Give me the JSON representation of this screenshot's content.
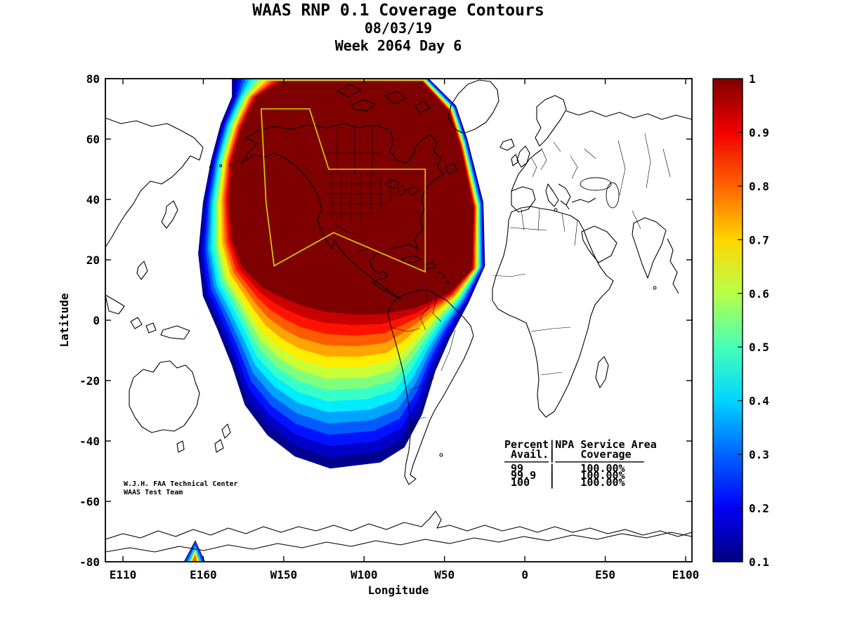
{
  "titles": {
    "line1": "WAAS RNP 0.1 Coverage Contours",
    "line2": "08/03/19",
    "line3": "Week 2064 Day 6"
  },
  "axes": {
    "x": {
      "label": "Longitude",
      "ticks": [
        {
          "label": "E110",
          "lon": 110
        },
        {
          "label": "E160",
          "lon": 160
        },
        {
          "label": "W150",
          "lon": 210
        },
        {
          "label": "W100",
          "lon": 260
        },
        {
          "label": "W50",
          "lon": 310
        },
        {
          "label": "0",
          "lon": 360
        },
        {
          "label": "E50",
          "lon": 410
        },
        {
          "label": "E100",
          "lon": 460
        }
      ]
    },
    "y": {
      "label": "Latitude",
      "ticks": [
        {
          "label": "80",
          "lat": 80
        },
        {
          "label": "60",
          "lat": 60
        },
        {
          "label": "40",
          "lat": 40
        },
        {
          "label": "20",
          "lat": 20
        },
        {
          "label": "0",
          "lat": 0
        },
        {
          "label": "-20",
          "lat": -20
        },
        {
          "label": "-40",
          "lat": -40
        },
        {
          "label": "-60",
          "lat": -60
        },
        {
          "label": "-80",
          "lat": -80
        }
      ]
    }
  },
  "colorbar": {
    "min": 0.1,
    "max": 1,
    "ticks": [
      {
        "label": "1",
        "value": 1.0
      },
      {
        "label": "0.9",
        "value": 0.9
      },
      {
        "label": "0.8",
        "value": 0.8
      },
      {
        "label": "0.7",
        "value": 0.7
      },
      {
        "label": "0.6",
        "value": 0.6
      },
      {
        "label": "0.5",
        "value": 0.5
      },
      {
        "label": "0.4",
        "value": 0.4
      },
      {
        "label": "0.3",
        "value": 0.3
      },
      {
        "label": "0.2",
        "value": 0.2
      },
      {
        "label": "0.1",
        "value": 0.1
      }
    ],
    "stops": [
      {
        "value": 1.0,
        "color": "#7F0000"
      },
      {
        "value": 0.9,
        "color": "#F10000"
      },
      {
        "value": 0.8,
        "color": "#FF6300"
      },
      {
        "value": 0.7,
        "color": "#FFD500"
      },
      {
        "value": 0.6,
        "color": "#B8FF47"
      },
      {
        "value": 0.5,
        "color": "#47FFB8"
      },
      {
        "value": 0.4,
        "color": "#00D4FF"
      },
      {
        "value": 0.3,
        "color": "#0063FF"
      },
      {
        "value": 0.2,
        "color": "#0000F5"
      },
      {
        "value": 0.1,
        "color": "#000080"
      }
    ]
  },
  "colors": {
    "service_area": "#D6D600",
    "coastline": "#000000",
    "background": "#FFFFFF"
  },
  "annotations": {
    "stats_rows": [
      "Percent|NPA Service Area",
      " Avail.|    Coverage",
      "_______|______________",
      " 99    |    100.00%",
      " 99.9  |    100.00%",
      " 100   |    100.00%"
    ],
    "credit_line1": "W.J.H. FAA Technical Center",
    "credit_line2": "WAAS Test Team"
  },
  "chart_data": {
    "type": "heatmap",
    "title": "WAAS RNP 0.1 Coverage Contours",
    "date": "08/03/19",
    "week": "Week 2064 Day 6",
    "xlabel": "Longitude",
    "ylabel": "Latitude",
    "x_axis_deg_east_of_greenwich": [
      110,
      460
    ],
    "y_range_lat": [
      -80,
      80
    ],
    "colormap": "jet",
    "colorbar_range": [
      0.1,
      1.0
    ],
    "contour_levels": [
      0.1,
      0.164,
      0.229,
      0.293,
      0.357,
      0.421,
      0.486,
      0.55,
      0.614,
      0.679,
      0.743,
      0.807,
      0.871,
      0.936,
      1.0
    ],
    "contour_colors": [
      "#00008F",
      "#0000C8",
      "#0012FF",
      "#005BFF",
      "#00A4FF",
      "#00EDFF",
      "#37FFC8",
      "#7FFF7F",
      "#C8FF37",
      "#FFED00",
      "#FFA400",
      "#FF5B00",
      "#FF1200",
      "#C80000",
      "#7F0000"
    ],
    "coverage_outer_boundary": [
      [
        178,
        80
      ],
      [
        300,
        80
      ],
      [
        317,
        71
      ],
      [
        324,
        60
      ],
      [
        334,
        39
      ],
      [
        335,
        18
      ],
      [
        325,
        6
      ],
      [
        313,
        -6
      ],
      [
        304,
        -17
      ],
      [
        296,
        -31
      ],
      [
        285,
        -42
      ],
      [
        270,
        -47
      ],
      [
        239,
        -49
      ],
      [
        217,
        -45
      ],
      [
        200,
        -38
      ],
      [
        186,
        -28
      ],
      [
        178,
        -15
      ],
      [
        169,
        -3
      ],
      [
        160,
        8
      ],
      [
        157,
        22
      ],
      [
        160,
        39
      ],
      [
        165,
        53
      ],
      [
        171,
        65
      ],
      [
        178,
        74
      ]
    ],
    "coverage_core_boundary": [
      [
        208,
        79
      ],
      [
        296,
        79
      ],
      [
        313,
        69
      ],
      [
        320,
        57
      ],
      [
        328,
        37
      ],
      [
        327,
        17
      ],
      [
        313,
        9
      ],
      [
        300,
        6
      ],
      [
        291,
        4
      ],
      [
        280,
        3
      ],
      [
        270,
        2
      ],
      [
        252,
        2
      ],
      [
        235,
        3
      ],
      [
        221,
        5
      ],
      [
        212,
        7
      ],
      [
        204,
        9
      ],
      [
        197,
        11
      ],
      [
        191,
        14
      ],
      [
        184,
        18
      ],
      [
        178,
        27
      ],
      [
        176,
        40
      ],
      [
        178,
        53
      ],
      [
        184,
        64
      ],
      [
        193,
        74
      ]
    ],
    "service_area_boundary": [
      [
        196,
        70
      ],
      [
        226,
        70
      ],
      [
        238,
        50
      ],
      [
        298,
        50
      ],
      [
        298,
        16
      ],
      [
        241,
        29
      ],
      [
        204,
        18
      ],
      [
        199,
        39
      ]
    ],
    "south_feature": [
      {
        "color": "#0040FF",
        "pts": [
          [
            148,
            -80
          ],
          [
            161,
            -80
          ],
          [
            155,
            -73
          ]
        ]
      },
      {
        "color": "#00D4FF",
        "pts": [
          [
            150,
            -80
          ],
          [
            159,
            -80
          ],
          [
            155,
            -74.5
          ]
        ]
      },
      {
        "color": "#FFED00",
        "pts": [
          [
            151.5,
            -80
          ],
          [
            157.5,
            -80
          ],
          [
            155,
            -76
          ]
        ]
      },
      {
        "color": "#FF6300",
        "pts": [
          [
            153,
            -80
          ],
          [
            156,
            -80
          ],
          [
            155,
            -77.5
          ]
        ]
      }
    ],
    "availability_table": {
      "columns": [
        "Percent Avail.",
        "NPA Service Area Coverage"
      ],
      "rows": [
        [
          "99",
          "100.00%"
        ],
        [
          "99.9",
          "100.00%"
        ],
        [
          "100",
          "100.00%"
        ]
      ]
    }
  }
}
